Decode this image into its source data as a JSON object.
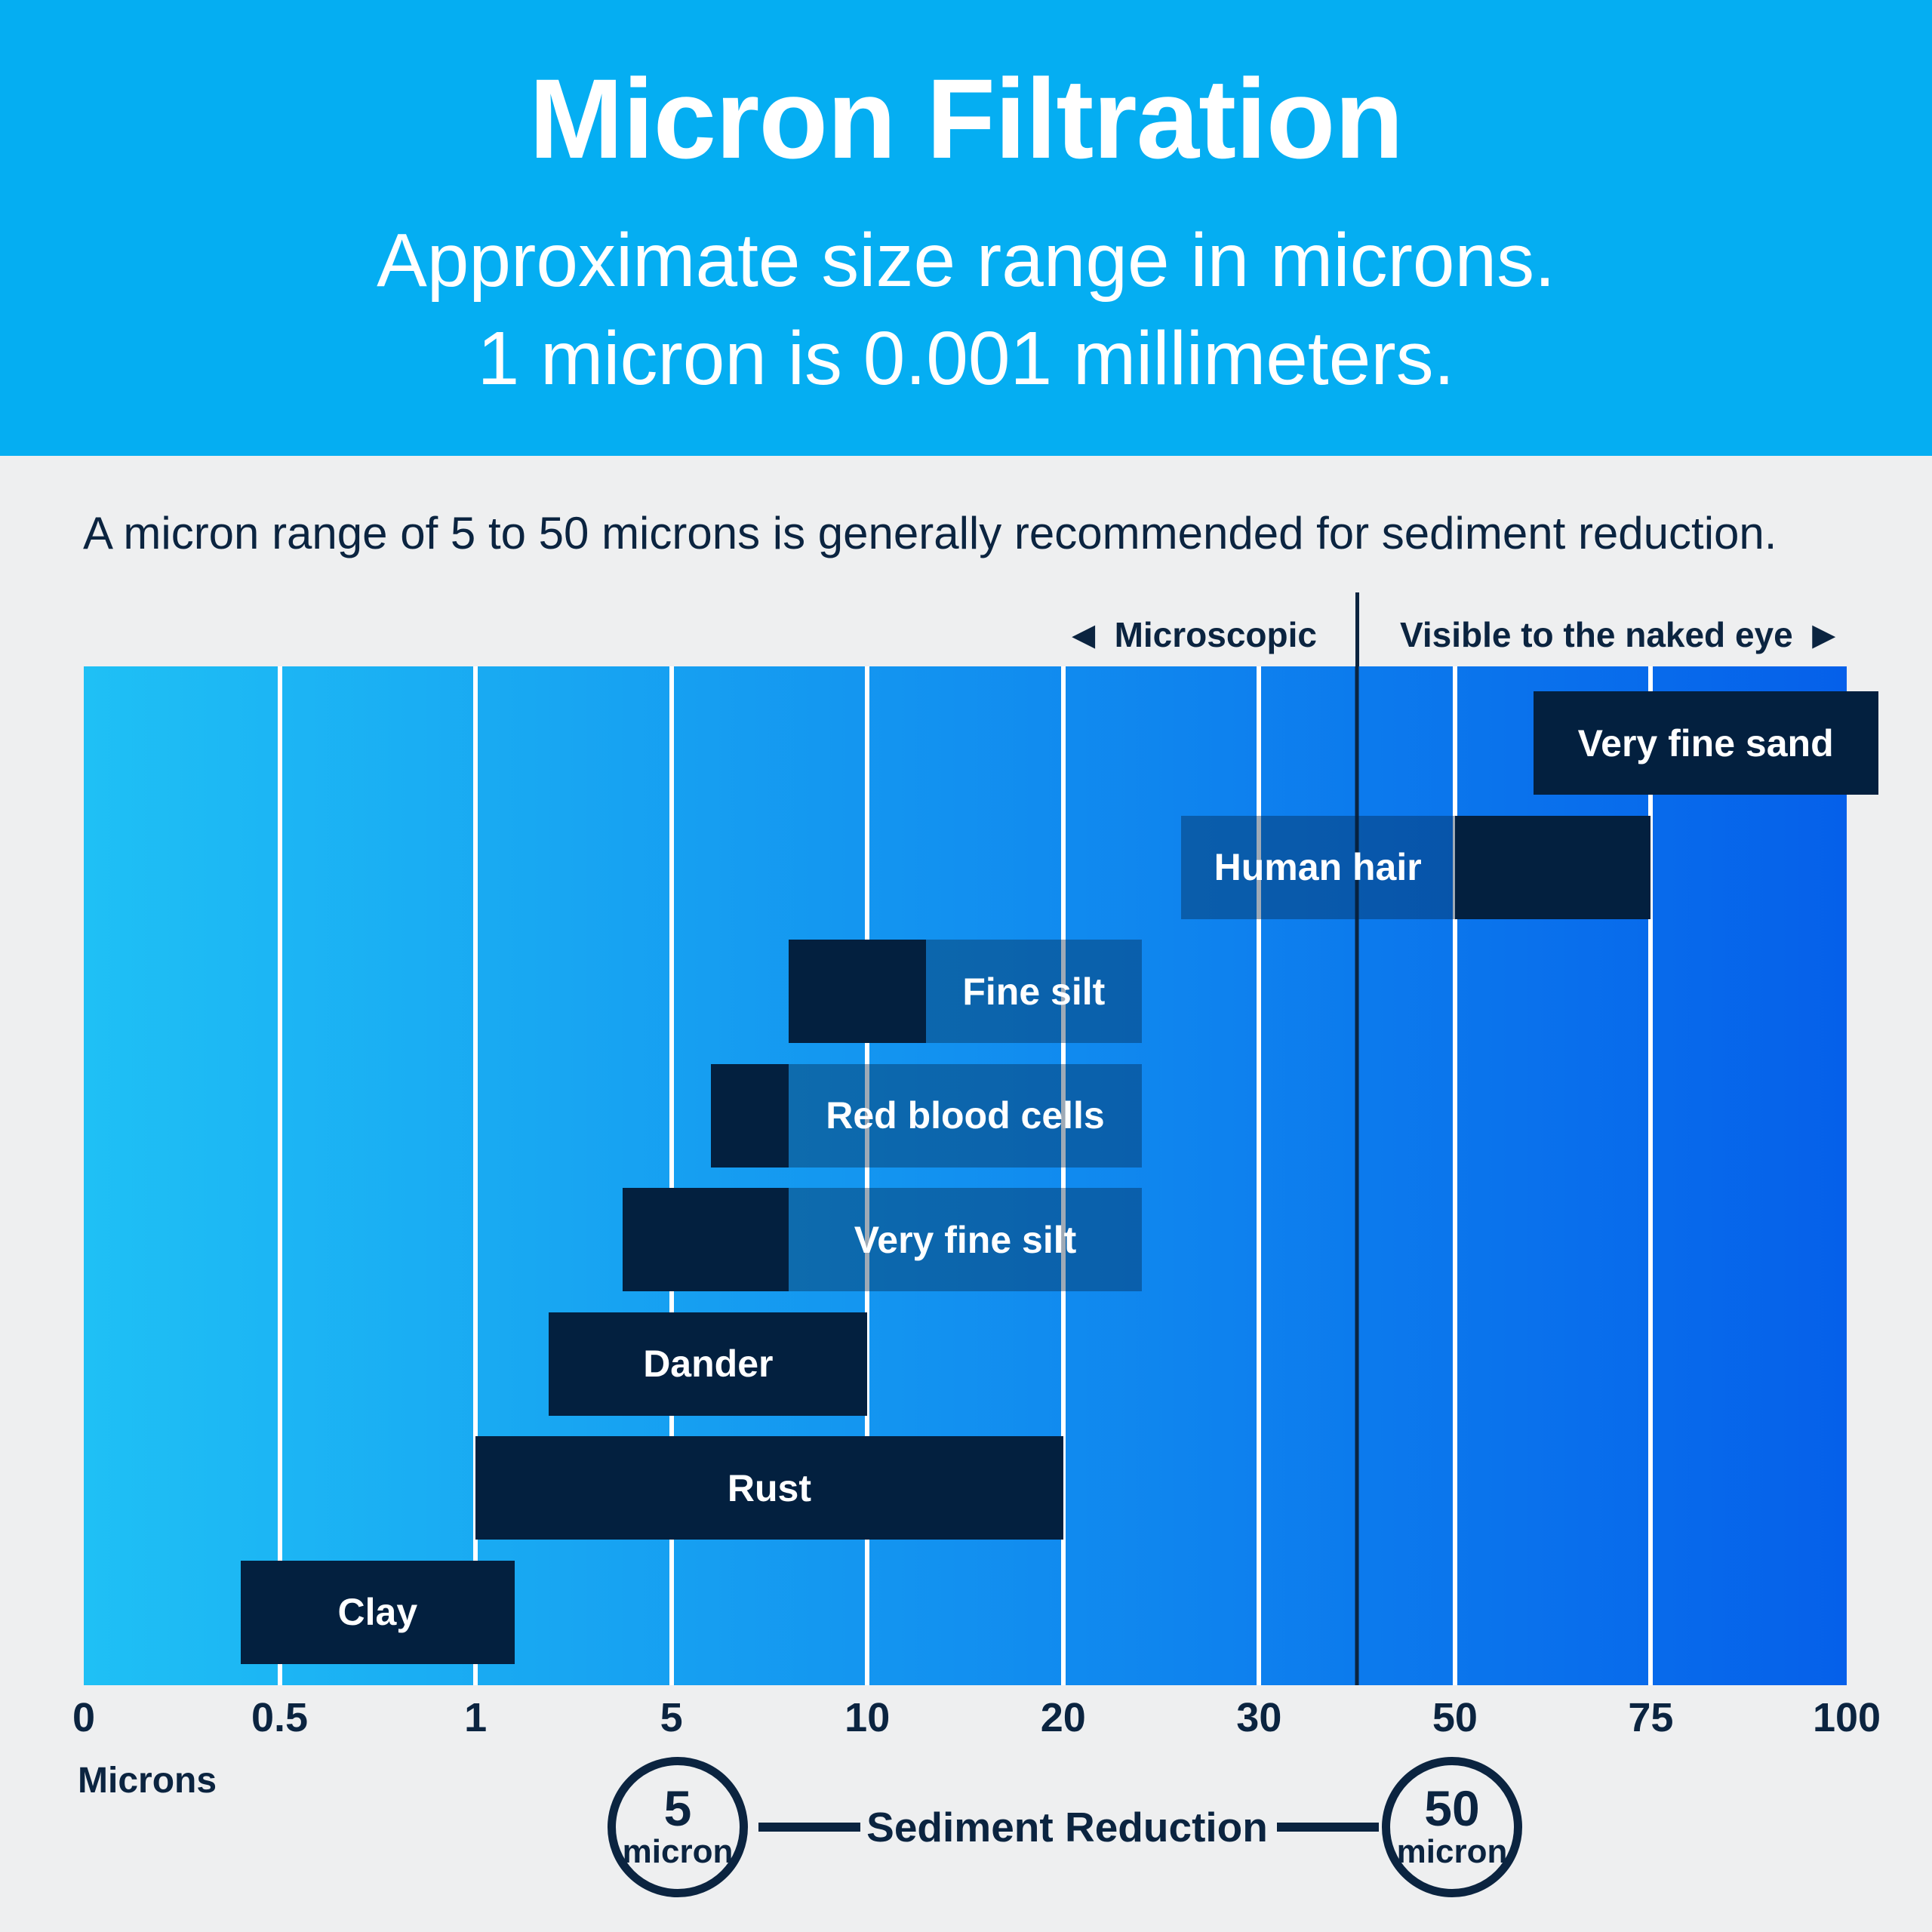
{
  "header": {
    "title": "Micron Filtration",
    "subtitle_line1": "Approximate size range in microns.",
    "subtitle_line2": "1 micron is 0.001 millimeters."
  },
  "intro": "A micron range of 5 to 50 microns is generally recommended for sediment reduction.",
  "zones": {
    "microscopic": "Microscopic",
    "visible": "Visible to the naked eye",
    "left_arrow": "◀",
    "right_arrow": "▶",
    "divider_micron": 40
  },
  "axis": {
    "label": "Microns"
  },
  "footer": {
    "left_circle": {
      "value": "5",
      "unit": "micron"
    },
    "label": "Sediment Reduction",
    "right_circle": {
      "value": "50",
      "unit": "micron"
    }
  },
  "colors": {
    "header_bg": "#05aef2",
    "page_bg": "#eeeff0",
    "navy": "#03203f",
    "text_navy": "#0b2440",
    "gradient_left": "#1fc0f5",
    "gradient_right": "#0560ea",
    "label_box": "rgba(3,32,63,0.38)",
    "gridline": "#ffffff"
  },
  "chart_data": {
    "type": "bar",
    "orientation": "horizontal-range",
    "title": "Micron Filtration",
    "xlabel": "Microns",
    "unit": "microns",
    "x_ticks": [
      0,
      0.5,
      1,
      5,
      10,
      20,
      30,
      50,
      75,
      100
    ],
    "xlim": [
      0,
      100
    ],
    "grid": true,
    "visible_threshold_microns": 40,
    "rows": [
      {
        "name": "Very fine sand",
        "range_microns": [
          60,
          104
        ],
        "label_box_microns": null,
        "label_in": "bar"
      },
      {
        "name": "Human hair",
        "range_microns": [
          50,
          75
        ],
        "label_box_microns": [
          26,
          50
        ],
        "label_in": "box"
      },
      {
        "name": "Fine silt",
        "range_microns": [
          8,
          13
        ],
        "label_box_microns": [
          13,
          24
        ],
        "label_in": "box"
      },
      {
        "name": "Red blood cells",
        "range_microns": [
          6,
          8
        ],
        "label_box_microns": [
          8,
          24
        ],
        "label_in": "box"
      },
      {
        "name": "Very fine silt",
        "range_microns": [
          4,
          8
        ],
        "label_box_microns": [
          8,
          24
        ],
        "label_in": "box"
      },
      {
        "name": "Dander",
        "range_microns": [
          2.5,
          10
        ],
        "label_box_microns": null,
        "label_in": "bar"
      },
      {
        "name": "Rust",
        "range_microns": [
          1,
          20
        ],
        "label_box_microns": null,
        "label_in": "bar"
      },
      {
        "name": "Clay",
        "range_microns": [
          0.4,
          1.8
        ],
        "label_box_microns": null,
        "label_in": "bar"
      }
    ]
  }
}
